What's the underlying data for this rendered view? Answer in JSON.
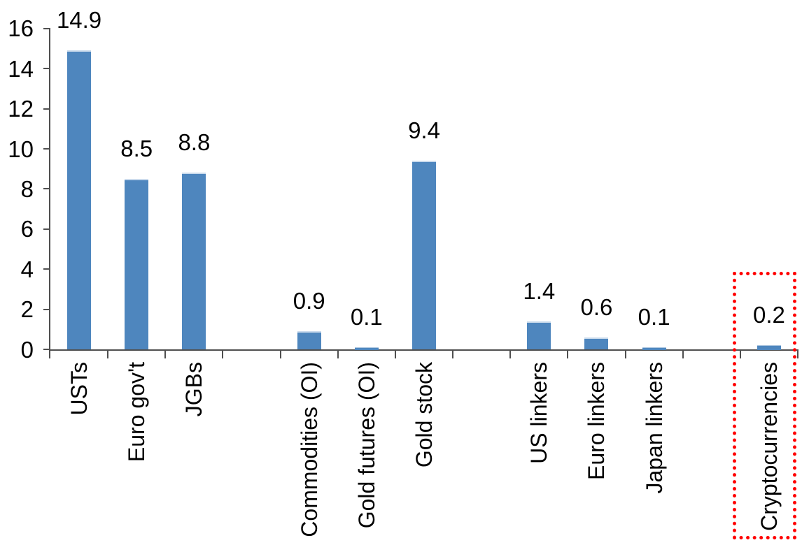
{
  "chart_data": {
    "type": "bar",
    "title": "",
    "xlabel": "",
    "ylabel": "",
    "ylim": [
      0,
      16
    ],
    "yticks": [
      0,
      2,
      4,
      6,
      8,
      10,
      12,
      14,
      16
    ],
    "grid": false,
    "legend": false,
    "bar_color": "#4E86BE",
    "bar_top_edge_color": "#C9DAEC",
    "axis_color": "#4F4F4F",
    "text_color": "#000000",
    "background_color": "#FFFFFF",
    "categories": [
      "USTs",
      "Euro gov't",
      "JGBs",
      "",
      "Commodities (OI)",
      "Gold futures (OI)",
      "Gold stock",
      "",
      "US linkers",
      "Euro linkers",
      "Japan linkers",
      "",
      "Cryptocurrencies"
    ],
    "values": [
      14.9,
      8.5,
      8.8,
      null,
      0.9,
      0.1,
      9.4,
      null,
      1.4,
      0.6,
      0.1,
      null,
      0.2
    ],
    "data_labels": [
      "14.9",
      "8.5",
      "8.8",
      "",
      "0.9",
      "0.1",
      "9.4",
      "",
      "1.4",
      "0.6",
      "0.1",
      "",
      "0.2"
    ],
    "highlight": {
      "category": "Cryptocurrencies",
      "style": "red-dotted-box",
      "color": "#FF0000"
    }
  }
}
